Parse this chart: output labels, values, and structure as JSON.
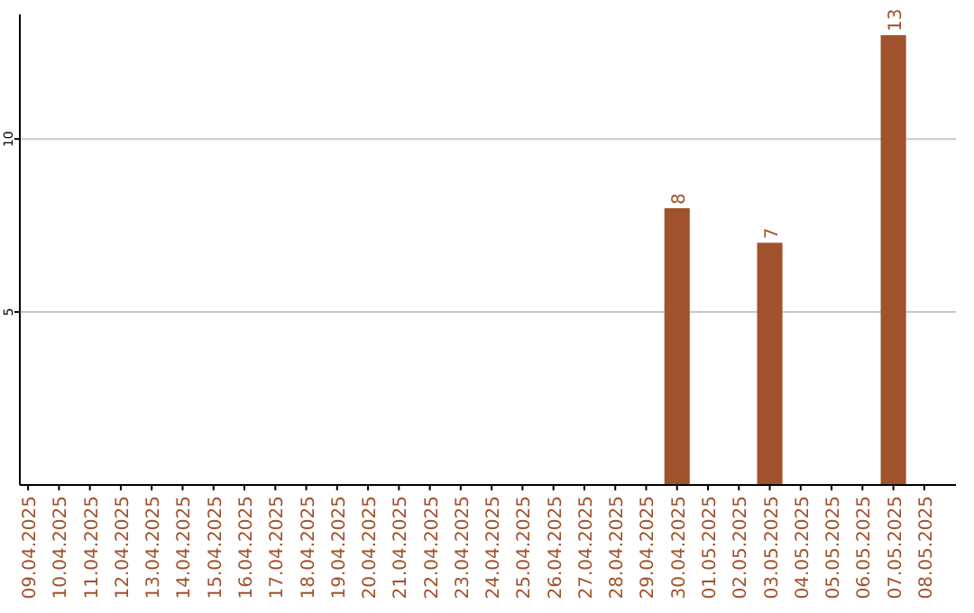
{
  "chart_data": {
    "type": "bar",
    "categories": [
      "09.04.2025",
      "10.04.2025",
      "11.04.2025",
      "12.04.2025",
      "13.04.2025",
      "14.04.2025",
      "15.04.2025",
      "16.04.2025",
      "17.04.2025",
      "18.04.2025",
      "19.04.2025",
      "20.04.2025",
      "21.04.2025",
      "22.04.2025",
      "23.04.2025",
      "24.04.2025",
      "25.04.2025",
      "26.04.2025",
      "27.04.2025",
      "28.04.2025",
      "29.04.2025",
      "30.04.2025",
      "01.05.2025",
      "02.05.2025",
      "03.05.2025",
      "04.05.2025",
      "05.05.2025",
      "06.05.2025",
      "07.05.2025",
      "08.05.2025"
    ],
    "values": [
      null,
      null,
      null,
      null,
      null,
      null,
      null,
      null,
      null,
      null,
      null,
      null,
      null,
      null,
      null,
      null,
      null,
      null,
      null,
      null,
      null,
      8,
      null,
      null,
      7,
      null,
      null,
      null,
      13,
      null
    ],
    "color": "#a0522d",
    "ylim": [
      0,
      13.6
    ],
    "yticks": [
      5,
      10
    ],
    "grid": "y",
    "data_labels": true
  }
}
